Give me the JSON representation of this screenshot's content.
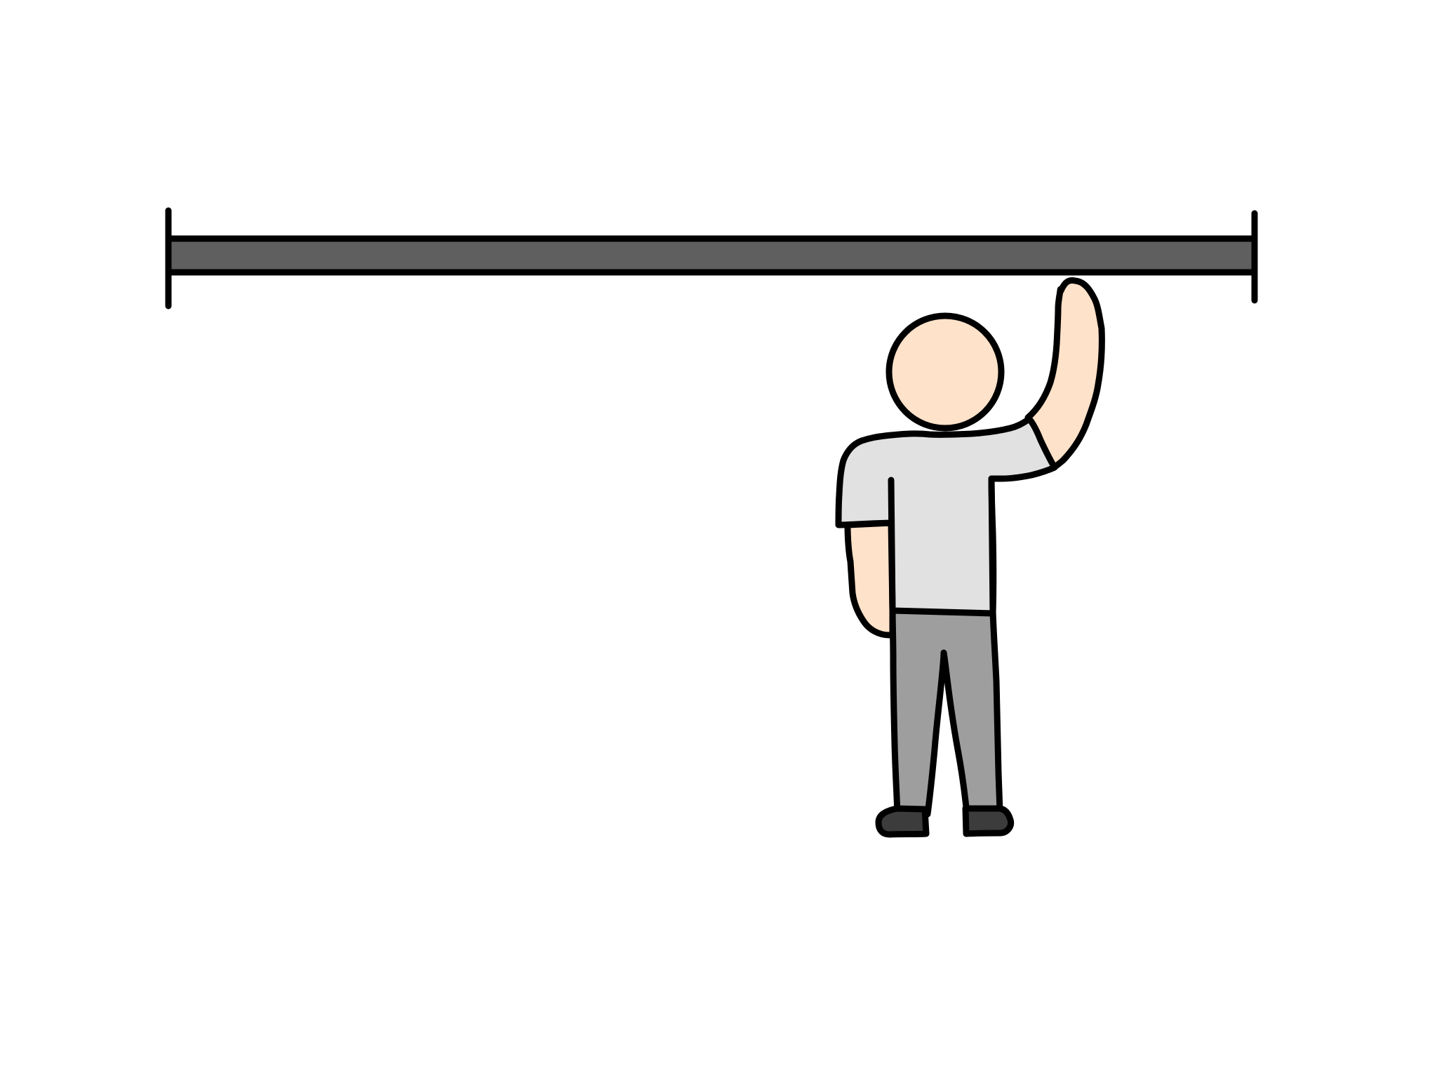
{
  "scene": {
    "description_items": [
      "horizontal-bar",
      "bar-end-ticks",
      "standing-person-reaching-bar"
    ],
    "colors": {
      "background": "#ffffff",
      "outline": "#000000",
      "bar_fill": "#5f5f5f",
      "skin": "#ffe2ca",
      "shirt": "#e1e1e1",
      "pants": "#9e9e9e",
      "shoes": "#3c3c3c"
    }
  }
}
